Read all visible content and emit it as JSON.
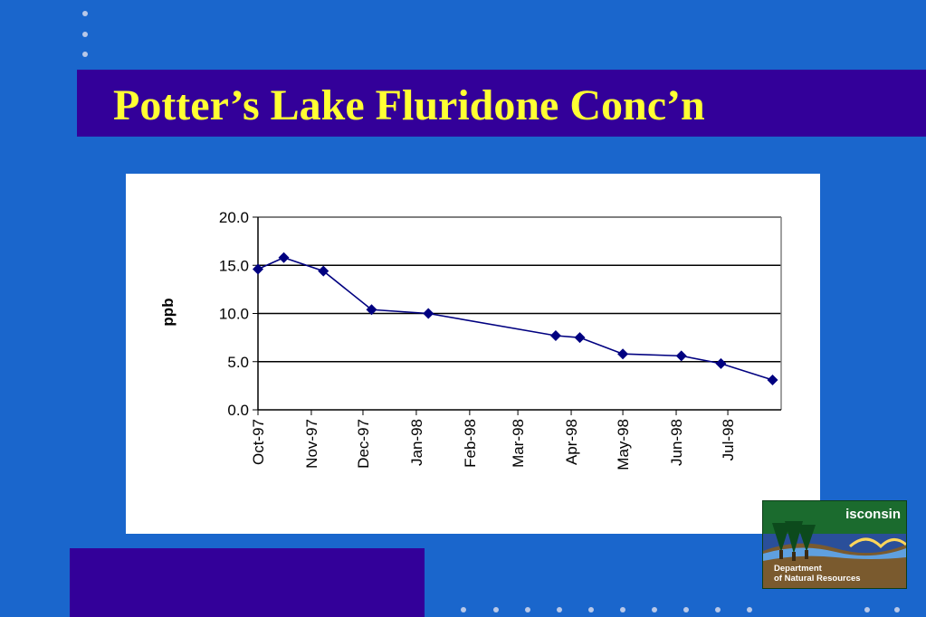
{
  "slide": {
    "title": "Potter’s Lake Fluridone Conc’n"
  },
  "colors": {
    "background": "#1a66cc",
    "band": "#330099",
    "title": "#ffff33",
    "series": "#000080"
  },
  "logo": {
    "word": "isconsin",
    "line1": "Department",
    "line2": "of Natural Resources"
  },
  "chart_data": {
    "type": "line",
    "title": "",
    "xlabel": "",
    "ylabel": "ppb",
    "x_tick_labels": [
      "Oct-97",
      "Nov-97",
      "Dec-97",
      "Jan-98",
      "Feb-98",
      "Mar-98",
      "Apr-98",
      "May-98",
      "Jun-98",
      "Jul-98"
    ],
    "ylim": [
      0,
      20
    ],
    "y_ticks": [
      0,
      5,
      10,
      15,
      20
    ],
    "y_tick_labels": [
      "0.0",
      "5.0",
      "10.0",
      "15.0",
      "20.0"
    ],
    "grid": true,
    "legend": "none",
    "series": [
      {
        "marker": "diamond",
        "points": [
          {
            "x": "1997-10-01",
            "y": 14.6
          },
          {
            "x": "1997-10-16",
            "y": 15.8
          },
          {
            "x": "1997-11-08",
            "y": 14.4
          },
          {
            "x": "1997-12-06",
            "y": 10.4
          },
          {
            "x": "1998-01-08",
            "y": 10.0
          },
          {
            "x": "1998-03-23",
            "y": 7.7
          },
          {
            "x": "1998-04-06",
            "y": 7.5
          },
          {
            "x": "1998-05-01",
            "y": 5.8
          },
          {
            "x": "1998-06-04",
            "y": 5.6
          },
          {
            "x": "1998-06-27",
            "y": 4.8
          },
          {
            "x": "1998-07-27",
            "y": 3.1
          }
        ]
      }
    ]
  }
}
